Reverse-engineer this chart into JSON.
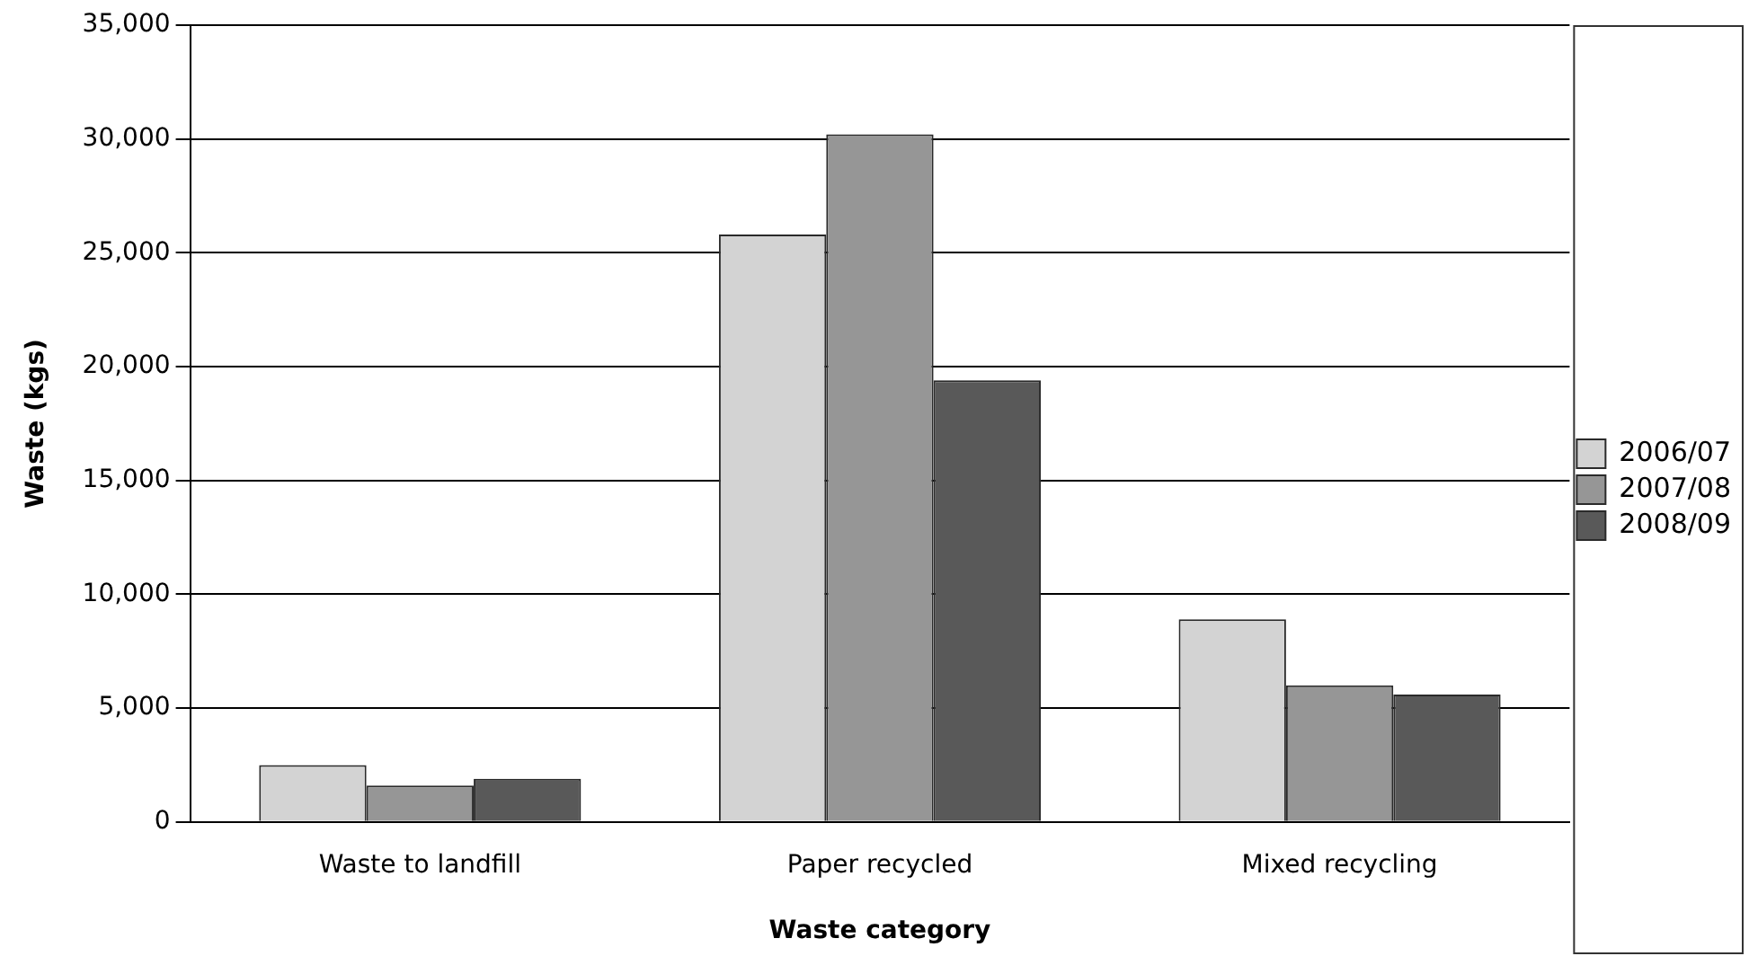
{
  "chart_data": {
    "type": "bar",
    "xlabel": "Waste category",
    "ylabel": "Waste (kgs)",
    "categories": [
      "Waste to landfill",
      "Paper recycled",
      "Mixed recycling"
    ],
    "series": [
      {
        "name": "2006/07",
        "color": "#d3d3d3",
        "values": [
          2500,
          25800,
          8900
        ]
      },
      {
        "name": "2007/08",
        "color": "#969696",
        "values": [
          1600,
          30200,
          6000
        ]
      },
      {
        "name": "2008/09",
        "color": "#595959",
        "values": [
          1900,
          19400,
          5600
        ]
      }
    ],
    "ylim": [
      0,
      35000
    ],
    "yticks": [
      {
        "value": 0,
        "label": "0"
      },
      {
        "value": 5000,
        "label": "5,000"
      },
      {
        "value": 10000,
        "label": "10,000"
      },
      {
        "value": 15000,
        "label": "15,000"
      },
      {
        "value": 20000,
        "label": "20,000"
      },
      {
        "value": 25000,
        "label": "25,000"
      },
      {
        "value": 30000,
        "label": "30,000"
      },
      {
        "value": 35000,
        "label": "35,000"
      }
    ],
    "grid": "y",
    "legend": "right"
  }
}
